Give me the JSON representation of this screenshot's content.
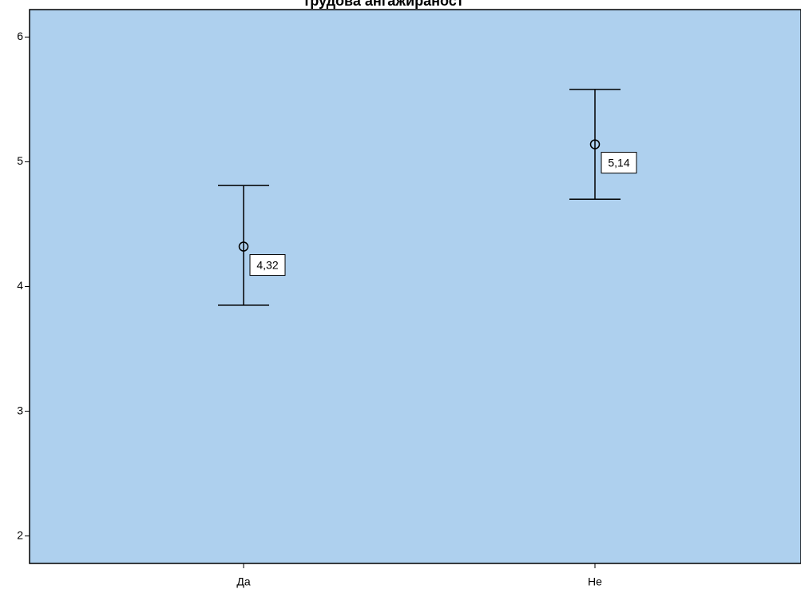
{
  "chart_data": {
    "type": "errorbar",
    "title": "трудова ангажираност",
    "categories": [
      "Да",
      "Не"
    ],
    "values": [
      4.32,
      5.14
    ],
    "value_labels": [
      "4,32",
      "5,14"
    ],
    "low": [
      3.85,
      4.7
    ],
    "high": [
      4.81,
      5.58
    ],
    "ylim": [
      1.78,
      6.22
    ],
    "yticks": [
      2,
      3,
      4,
      5,
      6
    ],
    "background": "#aed0ee",
    "color": "#000000"
  }
}
